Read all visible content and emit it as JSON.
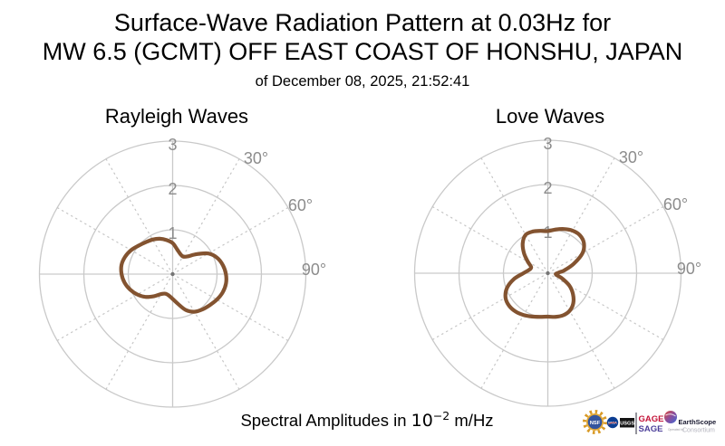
{
  "title": {
    "line1": "Surface-Wave Radiation Pattern at 0.03Hz for",
    "line2": "MW 6.5 (GCMT) OFF EAST COAST OF HONSHU, JAPAN",
    "line3": "of December 08, 2025, 21:52:41"
  },
  "caption": {
    "prefix": "Spectral Amplitudes in ",
    "base": "10",
    "exponent": "−2",
    "suffix": " m/Hz"
  },
  "colors": {
    "curve": "#835330",
    "grid": "#C9C9C9",
    "spoke_dots": "#C6C6C6",
    "tick_label": "#8C8C8C",
    "center_dot": "#757575",
    "title_text": "#000000"
  },
  "chart_data": [
    {
      "type": "line",
      "projection": "polar",
      "title": "Rayleigh Waves",
      "r_ticks": [
        1,
        2,
        3
      ],
      "r_max": 3,
      "theta_tick_labels": [
        "30°",
        "60°",
        "90°"
      ],
      "theta_spoke_step_deg": 30,
      "units": "10^-2 m/Hz",
      "series": [
        {
          "name": "rayleigh-radiation",
          "azimuth_deg": [
            0,
            10,
            20,
            30,
            40,
            50,
            60,
            70,
            80,
            90,
            100,
            110,
            120,
            130,
            140,
            150,
            160,
            170,
            180,
            190,
            200,
            210,
            220,
            230,
            240,
            250,
            260,
            270,
            280,
            290,
            300,
            310,
            320,
            330,
            340,
            350
          ],
          "amplitude": [
            0.7,
            0.57,
            0.49,
            0.46,
            0.52,
            0.7,
            0.93,
            1.07,
            1.15,
            1.2,
            1.22,
            1.2,
            1.15,
            1.09,
            1.04,
            0.98,
            0.86,
            0.68,
            0.56,
            0.49,
            0.47,
            0.52,
            0.65,
            0.8,
            0.92,
            1.02,
            1.1,
            1.15,
            1.17,
            1.14,
            1.08,
            1.0,
            0.94,
            0.9,
            0.85,
            0.78
          ]
        }
      ]
    },
    {
      "type": "line",
      "projection": "polar",
      "title": "Love Waves",
      "r_ticks": [
        1,
        2,
        3
      ],
      "r_max": 3,
      "theta_tick_labels": [
        "30°",
        "60°",
        "90°"
      ],
      "theta_spoke_step_deg": 30,
      "units": "10^-2 m/Hz",
      "series": [
        {
          "name": "love-radiation",
          "azimuth_deg": [
            0,
            10,
            20,
            30,
            40,
            50,
            60,
            70,
            80,
            85,
            90,
            95,
            100,
            105,
            110,
            120,
            130,
            140,
            150,
            160,
            170,
            180,
            190,
            200,
            210,
            220,
            230,
            240,
            250,
            260,
            270,
            280,
            290,
            300,
            310,
            320,
            330,
            340,
            350
          ],
          "amplitude": [
            0.95,
            1.0,
            1.06,
            1.11,
            1.12,
            1.06,
            0.9,
            0.62,
            0.38,
            0.27,
            0.21,
            0.18,
            0.19,
            0.24,
            0.34,
            0.56,
            0.74,
            0.89,
            0.98,
            1.01,
            1.0,
            0.98,
            1.0,
            1.04,
            1.09,
            1.13,
            1.14,
            1.1,
            0.98,
            0.78,
            0.55,
            0.43,
            0.4,
            0.52,
            0.7,
            0.88,
            1.0,
            1.0,
            0.97
          ]
        }
      ]
    }
  ],
  "logos": {
    "nsf_label": "NSF",
    "nasa_label": "NASA",
    "usgs_label": "USGS",
    "gage_label": "GAGE",
    "sage_label": "SAGE",
    "earthscope_name": "EarthScope",
    "earthscope_operated_by": "Operated by",
    "earthscope_consortium": "Consortium",
    "gage_color": "#C41439",
    "sage_color": "#4C3F99",
    "nsf_gold": "#E2A835",
    "nsf_blue": "#33549E",
    "nasa_blue": "#0B3D91",
    "usgs_black": "#141414",
    "earthscope_text": "#191930"
  }
}
